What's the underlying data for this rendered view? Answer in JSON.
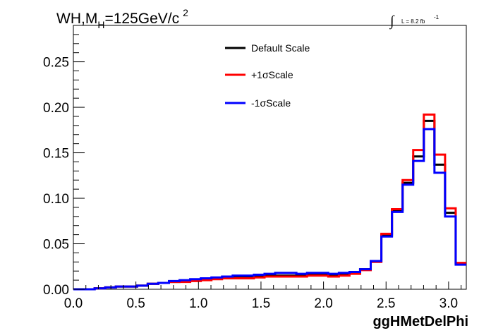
{
  "title": {
    "main": "WH,M",
    "sub": "H",
    "rest": "=125GeV/c",
    "sup": "2"
  },
  "lumi": {
    "integral": "∫",
    "text": "L = 8.2 fb",
    "sup": "-1"
  },
  "colors": {
    "default": "#000000",
    "plus": "#ff0000",
    "minus": "#0000ff"
  },
  "chart_data": {
    "type": "line",
    "xlabel": "ggHMetDelPhi",
    "ylabel": "",
    "xlim": [
      0,
      3.1416
    ],
    "ylim": [
      0,
      0.29
    ],
    "grid": false,
    "legend_position": "top-center",
    "x_ticks": [
      "0.0",
      "0.5",
      "1.0",
      "1.5",
      "2.0",
      "2.5",
      "3.0"
    ],
    "y_ticks": [
      "0.00",
      "0.05",
      "0.10",
      "0.15",
      "0.20",
      "0.25"
    ],
    "x_tick_values": [
      0,
      0.5,
      1.0,
      1.5,
      2.0,
      2.5,
      3.0
    ],
    "y_tick_values": [
      0,
      0.05,
      0.1,
      0.15,
      0.2,
      0.25
    ],
    "bins": 36,
    "series": [
      {
        "name": "Default Scale",
        "color": "#000000",
        "values": [
          0.0,
          0.0,
          0.001,
          0.002,
          0.003,
          0.003,
          0.004,
          0.006,
          0.007,
          0.008,
          0.009,
          0.01,
          0.011,
          0.012,
          0.013,
          0.013,
          0.014,
          0.015,
          0.015,
          0.015,
          0.015,
          0.016,
          0.016,
          0.016,
          0.016,
          0.017,
          0.018,
          0.022,
          0.031,
          0.059,
          0.087,
          0.117,
          0.146,
          0.185,
          0.137,
          0.084,
          0.028
        ]
      },
      {
        "name": "+1σScale",
        "color": "#ff0000",
        "values": [
          0.0,
          0.0,
          0.001,
          0.002,
          0.003,
          0.003,
          0.004,
          0.006,
          0.007,
          0.008,
          0.008,
          0.009,
          0.01,
          0.011,
          0.012,
          0.012,
          0.012,
          0.013,
          0.014,
          0.014,
          0.014,
          0.014,
          0.015,
          0.015,
          0.014,
          0.015,
          0.017,
          0.021,
          0.03,
          0.061,
          0.088,
          0.12,
          0.153,
          0.192,
          0.148,
          0.089,
          0.029
        ]
      },
      {
        "name": "-1σScale",
        "color": "#0000ff",
        "values": [
          0.0,
          0.0,
          0.001,
          0.002,
          0.003,
          0.003,
          0.004,
          0.006,
          0.007,
          0.009,
          0.01,
          0.011,
          0.012,
          0.013,
          0.014,
          0.015,
          0.015,
          0.016,
          0.017,
          0.018,
          0.018,
          0.017,
          0.018,
          0.018,
          0.017,
          0.018,
          0.019,
          0.022,
          0.031,
          0.058,
          0.085,
          0.115,
          0.141,
          0.176,
          0.128,
          0.08,
          0.027
        ]
      }
    ]
  }
}
